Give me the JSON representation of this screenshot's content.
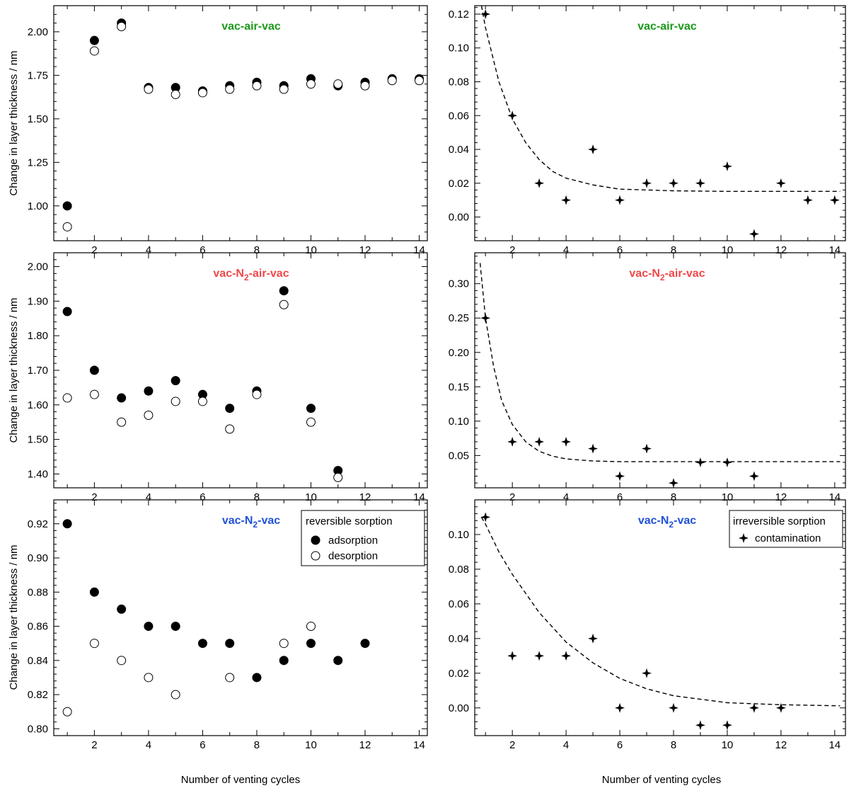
{
  "figure": {
    "ylabel": "Change in layer thickness / nm",
    "xlabel": "Number of venting cycles"
  },
  "chart_data": [
    {
      "type": "scatter",
      "title": "vac-air-vac",
      "title_color": "#1a9a1a",
      "x_ticks": [
        2,
        4,
        6,
        8,
        10,
        12,
        14
      ],
      "xlim": [
        0.5,
        14.3
      ],
      "y_ticks": [
        "1.00",
        "1.25",
        "1.50",
        "1.75",
        "2.00"
      ],
      "ylim": [
        0.8,
        2.15
      ],
      "series": [
        {
          "name": "adsorption",
          "marker": "filled-circle",
          "x": [
            1,
            2,
            3,
            4,
            5,
            6,
            7,
            8,
            9,
            10,
            11,
            12,
            13,
            14
          ],
          "y": [
            1.0,
            1.95,
            2.05,
            1.68,
            1.68,
            1.66,
            1.69,
            1.71,
            1.69,
            1.73,
            1.69,
            1.71,
            1.73,
            1.73
          ]
        },
        {
          "name": "desorption",
          "marker": "open-circle",
          "x": [
            1,
            2,
            3,
            4,
            5,
            6,
            7,
            8,
            9,
            10,
            11,
            12,
            13,
            14
          ],
          "y": [
            0.88,
            1.89,
            2.03,
            1.67,
            1.64,
            1.65,
            1.67,
            1.69,
            1.67,
            1.7,
            1.7,
            1.69,
            1.72,
            1.72
          ]
        }
      ]
    },
    {
      "type": "scatter",
      "title": "vac-air-vac",
      "title_color": "#1a9a1a",
      "x_ticks": [
        2,
        4,
        6,
        8,
        10,
        12,
        14
      ],
      "xlim": [
        0.6,
        14.4
      ],
      "y_ticks": [
        "0.00",
        "0.02",
        "0.04",
        "0.06",
        "0.08",
        "0.10",
        "0.12"
      ],
      "ylim": [
        -0.014,
        0.125
      ],
      "series": [
        {
          "name": "contamination",
          "marker": "star",
          "x": [
            1,
            2,
            3,
            4,
            5,
            6,
            7,
            8,
            9,
            10,
            11,
            12,
            13,
            14
          ],
          "y": [
            0.12,
            0.06,
            0.02,
            0.01,
            0.04,
            0.01,
            0.02,
            0.02,
            0.02,
            0.03,
            -0.01,
            0.02,
            0.01,
            0.01
          ]
        }
      ],
      "fit": {
        "style": "dashed",
        "x_start": 0.85,
        "x_end": 14.2,
        "x": [
          0.85,
          1,
          1.5,
          2,
          2.5,
          3,
          3.5,
          4,
          5,
          6,
          7,
          8,
          10,
          12,
          14.2
        ],
        "y": [
          0.125,
          0.112,
          0.08,
          0.058,
          0.044,
          0.034,
          0.027,
          0.023,
          0.019,
          0.0165,
          0.016,
          0.0155,
          0.0152,
          0.0152,
          0.0152
        ]
      }
    },
    {
      "type": "scatter",
      "title_parts": [
        "vac-N",
        "2",
        "-air-vac"
      ],
      "title_color": "#f04848",
      "x_ticks": [
        2,
        4,
        6,
        8,
        10,
        12,
        14
      ],
      "xlim": [
        0.5,
        14.3
      ],
      "y_ticks": [
        "1.40",
        "1.50",
        "1.60",
        "1.70",
        "1.80",
        "1.90",
        "2.00"
      ],
      "ylim": [
        1.36,
        2.04
      ],
      "series": [
        {
          "name": "adsorption",
          "marker": "filled-circle",
          "x": [
            1,
            2,
            3,
            4,
            5,
            6,
            7,
            8,
            9,
            10,
            11
          ],
          "y": [
            1.87,
            1.7,
            1.62,
            1.64,
            1.67,
            1.63,
            1.59,
            1.64,
            1.93,
            1.59,
            1.41
          ]
        },
        {
          "name": "desorption",
          "marker": "open-circle",
          "x": [
            1,
            2,
            3,
            4,
            5,
            6,
            7,
            8,
            9,
            10,
            11
          ],
          "y": [
            1.62,
            1.63,
            1.55,
            1.57,
            1.61,
            1.61,
            1.53,
            1.63,
            1.89,
            1.55,
            1.39
          ]
        }
      ]
    },
    {
      "type": "scatter",
      "title_parts": [
        "vac-N",
        "2",
        "-air-vac"
      ],
      "title_color": "#f04848",
      "x_ticks": [
        2,
        4,
        6,
        8,
        10,
        12,
        14
      ],
      "xlim": [
        0.6,
        14.4
      ],
      "y_ticks": [
        "0.05",
        "0.10",
        "0.15",
        "0.20",
        "0.25",
        "0.30"
      ],
      "ylim": [
        0.003,
        0.345
      ],
      "series": [
        {
          "name": "contamination",
          "marker": "star",
          "x": [
            1,
            2,
            3,
            4,
            5,
            6,
            7,
            8,
            9,
            10,
            11
          ],
          "y": [
            0.25,
            0.07,
            0.07,
            0.07,
            0.06,
            0.02,
            0.06,
            0.01,
            0.04,
            0.04,
            0.02
          ]
        }
      ],
      "fit": {
        "style": "dashed",
        "x_start": 0.8,
        "x_end": 14.2,
        "x": [
          0.8,
          1,
          1.3,
          1.6,
          2,
          2.5,
          3,
          3.5,
          4,
          5,
          6,
          8,
          10,
          14.2
        ],
        "y": [
          0.33,
          0.25,
          0.18,
          0.13,
          0.095,
          0.07,
          0.056,
          0.049,
          0.045,
          0.042,
          0.041,
          0.041,
          0.041,
          0.041
        ]
      }
    },
    {
      "type": "scatter",
      "title_parts": [
        "vac-N",
        "2",
        "-vac"
      ],
      "title_color": "#2050d8",
      "x_ticks": [
        2,
        4,
        6,
        8,
        10,
        12,
        14
      ],
      "xlim": [
        0.5,
        14.3
      ],
      "y_ticks": [
        "0.80",
        "0.82",
        "0.84",
        "0.86",
        "0.88",
        "0.90",
        "0.92"
      ],
      "ylim": [
        0.796,
        0.934
      ],
      "series": [
        {
          "name": "adsorption",
          "marker": "filled-circle",
          "x": [
            1,
            2,
            3,
            4,
            5,
            6,
            7,
            8,
            9,
            10,
            11,
            12
          ],
          "y": [
            0.92,
            0.88,
            0.87,
            0.86,
            0.86,
            0.85,
            0.85,
            0.83,
            0.84,
            0.85,
            0.84,
            0.85
          ]
        },
        {
          "name": "desorption",
          "marker": "open-circle",
          "x": [
            1,
            2,
            3,
            4,
            5,
            7,
            9,
            10
          ],
          "y": [
            0.81,
            0.85,
            0.84,
            0.83,
            0.82,
            0.83,
            0.85,
            0.86
          ]
        }
      ],
      "legend": {
        "title": "reversible sorption",
        "entries": [
          "adsorption",
          "desorption"
        ],
        "placement": "top-right"
      }
    },
    {
      "type": "scatter",
      "title_parts": [
        "vac-N",
        "2",
        "-vac"
      ],
      "title_color": "#2050d8",
      "x_ticks": [
        2,
        4,
        6,
        8,
        10,
        12,
        14
      ],
      "xlim": [
        0.6,
        14.4
      ],
      "y_ticks": [
        "0.00",
        "0.02",
        "0.04",
        "0.06",
        "0.08",
        "0.10"
      ],
      "ylim": [
        -0.016,
        0.12
      ],
      "series": [
        {
          "name": "contamination",
          "marker": "star",
          "x": [
            1,
            2,
            3,
            4,
            5,
            6,
            7,
            8,
            9,
            10,
            11,
            12
          ],
          "y": [
            0.11,
            0.03,
            0.03,
            0.03,
            0.04,
            0.0,
            0.02,
            0.0,
            -0.01,
            -0.01,
            0.0,
            0.0
          ]
        }
      ],
      "fit": {
        "style": "dashed",
        "x_start": 0.85,
        "x_end": 14.2,
        "x": [
          0.85,
          1,
          1.5,
          2,
          3,
          4,
          5,
          6,
          7,
          8,
          10,
          12,
          14.2
        ],
        "y": [
          0.11,
          0.106,
          0.09,
          0.077,
          0.055,
          0.038,
          0.026,
          0.017,
          0.011,
          0.007,
          0.003,
          0.0018,
          0.0012
        ]
      },
      "legend": {
        "title": "irreversible sorption",
        "entries": [
          "contamination"
        ],
        "placement": "top-right"
      }
    }
  ]
}
